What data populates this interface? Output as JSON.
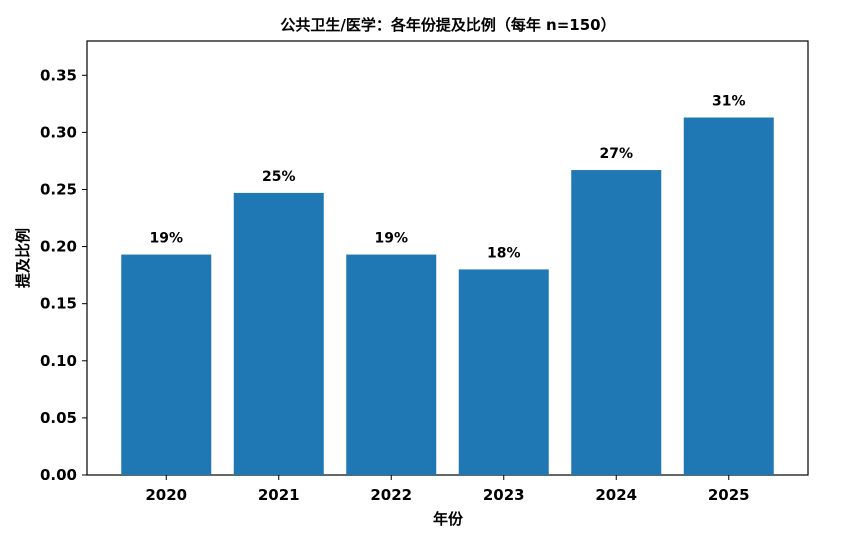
{
  "chart_data": {
    "type": "bar",
    "title": "公共卫生/医学：各年份提及比例（每年 n=150）",
    "xlabel": "年份",
    "ylabel": "提及比例",
    "categories": [
      "2020",
      "2021",
      "2022",
      "2023",
      "2024",
      "2025"
    ],
    "values": [
      0.193,
      0.247,
      0.193,
      0.18,
      0.267,
      0.313
    ],
    "data_labels": [
      "19%",
      "25%",
      "19%",
      "18%",
      "27%",
      "31%"
    ],
    "ylim": [
      0,
      0.38
    ],
    "yticks": [
      0.0,
      0.05,
      0.1,
      0.15,
      0.2,
      0.25,
      0.3,
      0.35
    ],
    "ytick_labels": [
      "0.00",
      "0.05",
      "0.10",
      "0.15",
      "0.20",
      "0.25",
      "0.30",
      "0.35"
    ],
    "bar_color": "#1f77b4",
    "grid": false,
    "legend": "none"
  }
}
